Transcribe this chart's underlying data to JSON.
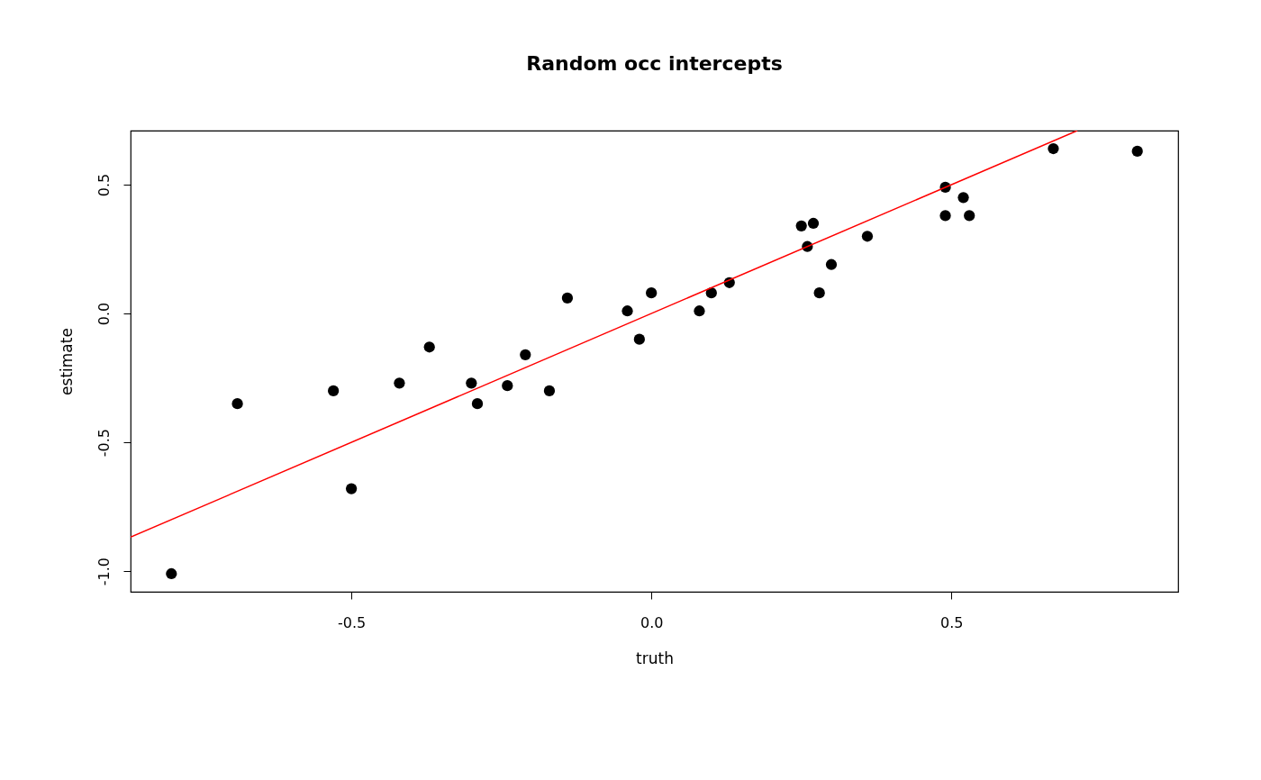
{
  "chart_data": {
    "type": "scatter",
    "title": "Random occ intercepts",
    "xlabel": "truth",
    "ylabel": "estimate",
    "xlim": [
      -0.868,
      0.878
    ],
    "ylim": [
      -1.08,
      0.71
    ],
    "xticks": [
      -0.5,
      {
        "value": 0,
        "label": "0.0"
      },
      0.5
    ],
    "yticks": [
      {
        "value": -1,
        "label": "-1.0"
      },
      -0.5,
      {
        "value": 0,
        "label": "0.0"
      },
      0.5
    ],
    "grid": false,
    "series": [
      {
        "marker": "circle",
        "color": "#000000",
        "x": [
          -0.8,
          -0.69,
          -0.53,
          -0.5,
          -0.42,
          -0.37,
          -0.3,
          -0.29,
          -0.24,
          -0.21,
          -0.17,
          -0.14,
          -0.04,
          -0.02,
          0.0,
          0.08,
          0.1,
          0.13,
          0.25,
          0.26,
          0.27,
          0.28,
          0.3,
          0.36,
          0.49,
          0.49,
          0.52,
          0.53,
          0.67,
          0.81
        ],
        "values": [
          -1.01,
          -0.35,
          -0.3,
          -0.68,
          -0.27,
          -0.13,
          -0.27,
          -0.35,
          -0.28,
          -0.16,
          -0.3,
          0.06,
          0.01,
          -0.1,
          0.08,
          0.01,
          0.08,
          0.12,
          0.34,
          0.26,
          0.35,
          0.08,
          0.19,
          0.3,
          0.38,
          0.49,
          0.45,
          0.38,
          0.64,
          0.63
        ]
      },
      {
        "type": "line",
        "color": "#ff0000",
        "line_style": "solid",
        "x": [
          -0.868,
          0.71
        ],
        "values": [
          -0.868,
          0.71
        ]
      }
    ]
  }
}
